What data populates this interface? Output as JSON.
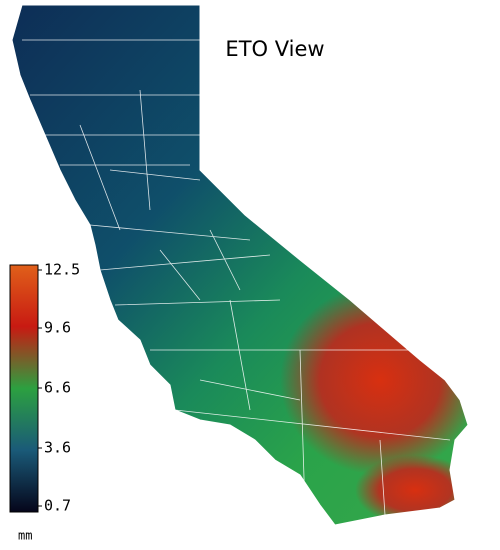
{
  "title": "ETO View",
  "legend": {
    "unit": "mm",
    "lim": [
      0.7,
      12.5
    ],
    "ticks": [
      12.5,
      9.6,
      6.6,
      3.6,
      0.7
    ]
  }
}
